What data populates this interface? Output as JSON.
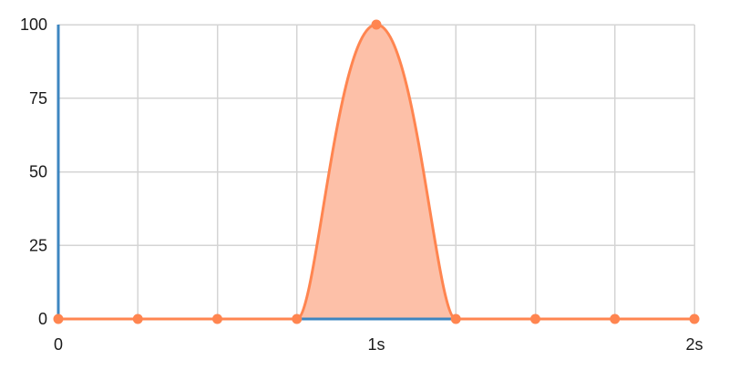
{
  "chart_data": {
    "type": "area",
    "title": "",
    "xlabel": "",
    "ylabel": "",
    "x": [
      0,
      0.25,
      0.5,
      0.75,
      1,
      1.25,
      1.5,
      1.75,
      2
    ],
    "series": [
      {
        "values": [
          0,
          0,
          0,
          0,
          100,
          0,
          0,
          0,
          0
        ],
        "color": "#ff8550",
        "fill": "#fdc0a8"
      }
    ],
    "xlim": [
      0,
      2
    ],
    "ylim": [
      0,
      100
    ],
    "x_ticks": [
      {
        "value": 0,
        "label": "0"
      },
      {
        "value": 1,
        "label": "1s"
      },
      {
        "value": 2,
        "label": "2s"
      }
    ],
    "y_ticks": [
      {
        "value": 0,
        "label": "0"
      },
      {
        "value": 25,
        "label": "25"
      },
      {
        "value": 50,
        "label": "50"
      },
      {
        "value": 75,
        "label": "75"
      },
      {
        "value": 100,
        "label": "100"
      }
    ],
    "x_gridlines": [
      0,
      0.25,
      0.5,
      0.75,
      1,
      1.25,
      1.5,
      1.75,
      2
    ],
    "y_gridlines": [
      0,
      25,
      50,
      75,
      100
    ],
    "grid": true,
    "legend": "none",
    "interpolation": "smooth",
    "axis_color": "#3d86c0",
    "grid_color": "#d4d4d4"
  }
}
